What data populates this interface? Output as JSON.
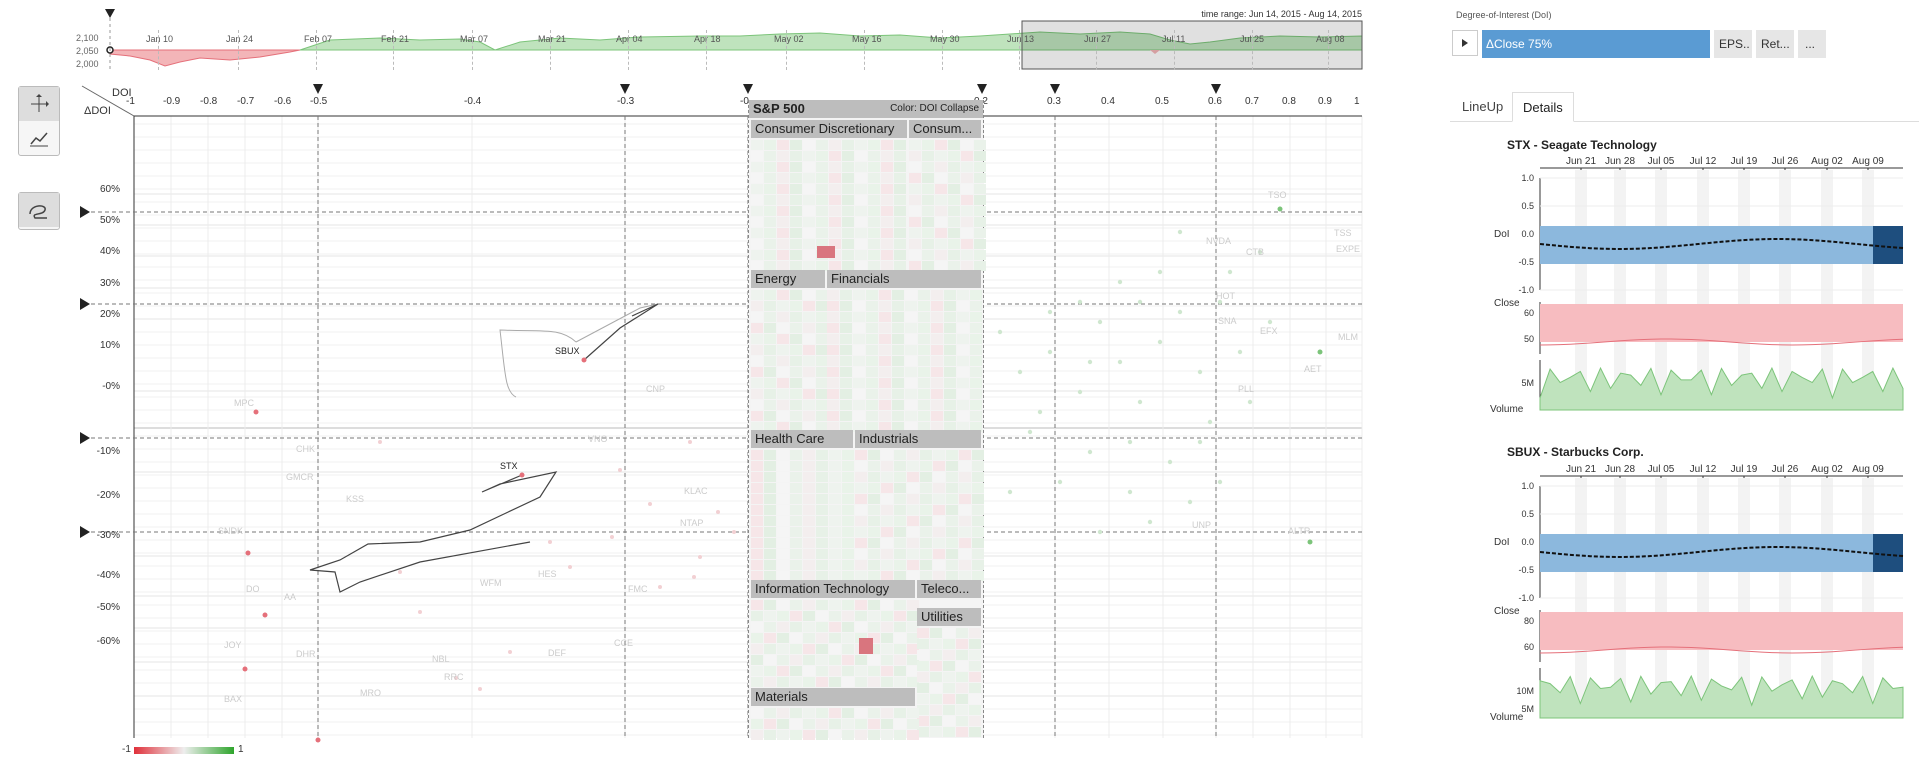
{
  "overview": {
    "time_range_label": "time range: Jun 14, 2015 - Aug 14, 2015",
    "y_ticks": [
      "2,100",
      "2,050",
      "2,000"
    ],
    "months": [
      "Jan 10",
      "Jan 24",
      "Feb 07",
      "Feb 21",
      "Mar 07",
      "Mar 21",
      "Apr 04",
      "Apr 18",
      "May 02",
      "May 16",
      "May 30",
      "Jun 13",
      "Jun 27",
      "Jul 11",
      "Jul 25",
      "Aug 08"
    ]
  },
  "axes": {
    "doi_label": "DOI",
    "ddoi_label": "ΔDOI",
    "x_ticks": [
      "-1",
      "-0.9",
      "-0.8",
      "-0.7",
      "-0.6",
      "-0.5",
      "-0.4",
      "-0.3",
      "-0",
      "0.2",
      "0.3",
      "0.4",
      "0.5",
      "0.6",
      "0.7",
      "0.8",
      "0.9",
      "1"
    ],
    "y_ticks": [
      "60%",
      "50%",
      "40%",
      "30%",
      "20%",
      "10%",
      "-0%",
      "-10%",
      "-20%",
      "-30%",
      "-40%",
      "-50%",
      "-60%"
    ]
  },
  "treemap": {
    "title": "S&P 500",
    "color_label": "Color: DOI Collapse",
    "sectors": [
      "Consumer Discretionary",
      "Consum...",
      "Energy",
      "Financials",
      "Health Care",
      "Industrials",
      "Information Technology",
      "Teleco...",
      "Utilities",
      "Materials"
    ]
  },
  "labels": {
    "stocks": [
      "SBUX",
      "STX",
      "MPC",
      "CHK",
      "GMCR",
      "SNDK",
      "KSS",
      "DO",
      "AA",
      "JOY",
      "BAX",
      "MRO",
      "CNP",
      "VNO",
      "KLAC",
      "NTAP",
      "HES",
      "DHR",
      "NBL",
      "WFM",
      "ALTR",
      "TSO",
      "EXPE",
      "MLM",
      "AET",
      "PLL",
      "EFX",
      "SNA",
      "NVDA",
      "HOT",
      "TSS",
      "CTB",
      "UNP",
      "DEF",
      "FMC",
      "RRC",
      "CCE"
    ]
  },
  "legend": {
    "min": "-1",
    "max": "1"
  },
  "right_panel": {
    "doi_title": "Degree-of-Interest (DoI)",
    "doi_main": "ΔClose 75%",
    "doi_other": [
      "EPS..",
      "Ret...",
      "..."
    ],
    "tabs": [
      "LineUp",
      "Details"
    ],
    "date_ticks": [
      "Jun 21",
      "Jun 28",
      "Jul 05",
      "Jul 12",
      "Jul 19",
      "Jul 26",
      "Aug 02",
      "Aug 09"
    ],
    "stocks": [
      {
        "title": "STX - Seagate Technology",
        "doi_ticks": [
          "1.0",
          "0.5",
          "0.0",
          "-0.5",
          "-1.0"
        ],
        "close_ticks": [
          "60",
          "50"
        ],
        "volume_ticks": [
          "5M"
        ]
      },
      {
        "title": "SBUX - Starbucks Corp.",
        "doi_ticks": [
          "1.0",
          "0.5",
          "0.0",
          "-0.5",
          "-1.0"
        ],
        "close_ticks": [
          "80",
          "60"
        ],
        "volume_ticks": [
          "10M",
          "5M"
        ]
      }
    ],
    "row_labels": {
      "doi": "DoI",
      "close": "Close",
      "volume": "Volume"
    }
  },
  "colors": {
    "positive": "#7cc47a",
    "negative": "#e5707a",
    "selection": "#5a9bd3",
    "accent": "#333333"
  }
}
